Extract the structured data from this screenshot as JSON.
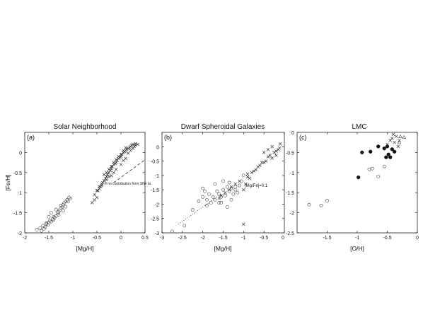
{
  "chart_data": [
    {
      "type": "scatter",
      "panel_label": "(a)",
      "title": "Solar Neighborhood",
      "xlabel": "[Mg/H]",
      "ylabel": "[Fe/H]",
      "xlim": [
        -2,
        0.5
      ],
      "ylim": [
        -2,
        0.5
      ],
      "xticks": [
        -2,
        -1.5,
        -1,
        -0.5,
        0,
        0.5
      ],
      "xticklabels": [
        "-2",
        "-1.5",
        "-1",
        "-0.5",
        "0",
        "0.5"
      ],
      "yticks": [
        -2,
        -1.5,
        -1,
        -0.5,
        0
      ],
      "yticklabels": [
        "-2",
        "-1.5",
        "-1",
        "-0.5",
        "0"
      ],
      "annotations": [
        {
          "text": "If no contribution from SNe Ia",
          "x": -0.42,
          "y": -1.0
        }
      ],
      "lines": [
        {
          "style": "dashed",
          "x": [
            -0.15,
            0.48
          ],
          "y": [
            -0.75,
            -0.2
          ]
        }
      ],
      "series": [
        {
          "marker": "open-circle",
          "x": [
            -1.75,
            -1.68,
            -1.62,
            -1.58,
            -1.55,
            -1.52,
            -1.5,
            -1.48,
            -1.45,
            -1.42,
            -1.4,
            -1.38,
            -1.35,
            -1.32,
            -1.3,
            -1.28,
            -1.25,
            -1.22,
            -1.2,
            -1.18,
            -1.15,
            -1.12,
            -1.1,
            -1.05,
            -1.3,
            -1.4,
            -1.55,
            -1.6,
            -1.65,
            -1.5,
            -1.45,
            -1.35,
            -1.25,
            -1.2,
            -1.15,
            -1.08
          ],
          "y": [
            -1.92,
            -1.88,
            -1.82,
            -1.86,
            -1.78,
            -1.8,
            -1.74,
            -1.7,
            -1.72,
            -1.66,
            -1.6,
            -1.62,
            -1.58,
            -1.52,
            -1.48,
            -1.44,
            -1.38,
            -1.36,
            -1.3,
            -1.26,
            -1.22,
            -1.18,
            -1.22,
            -1.15,
            -1.55,
            -1.68,
            -1.75,
            -1.9,
            -1.95,
            -1.6,
            -1.5,
            -1.42,
            -1.32,
            -1.45,
            -1.35,
            -1.12
          ]
        },
        {
          "marker": "x",
          "x": [
            -0.6,
            -0.55,
            -0.5,
            -0.48,
            -0.45,
            -0.42,
            -0.4,
            -0.38,
            -0.35,
            -0.32,
            -0.3,
            -0.28,
            -0.25,
            -0.22,
            -0.2,
            -0.18,
            -0.15,
            -0.12,
            -0.1,
            -0.08,
            -0.05,
            -0.02,
            0.0,
            0.02,
            0.05,
            0.08,
            0.1,
            0.12,
            0.15,
            0.18,
            0.2,
            0.22,
            0.25,
            0.28,
            0.3,
            0.35,
            -0.35,
            -0.3,
            -0.25,
            -0.2,
            -0.15,
            -0.1,
            -0.05,
            0.0,
            0.05,
            0.1,
            -0.45,
            -0.4,
            -0.3,
            -0.2,
            -0.1,
            0.0,
            0.1,
            0.15,
            -0.55,
            -0.5,
            -0.25,
            -0.15,
            0.05,
            0.2,
            0.25,
            0.3
          ],
          "y": [
            -1.25,
            -1.18,
            -1.12,
            -0.95,
            -0.9,
            -0.85,
            -0.82,
            -0.75,
            -0.7,
            -0.65,
            -0.6,
            -0.55,
            -0.5,
            -0.45,
            -0.4,
            -0.35,
            -0.3,
            -0.28,
            -0.25,
            -0.2,
            -0.15,
            -0.12,
            -0.1,
            -0.05,
            0.0,
            0.02,
            0.05,
            0.08,
            0.1,
            0.12,
            0.15,
            0.18,
            0.2,
            0.15,
            0.22,
            0.2,
            -0.55,
            -0.5,
            -0.42,
            -0.35,
            -0.25,
            -0.18,
            -0.1,
            -0.05,
            0.05,
            0.12,
            -0.85,
            -0.78,
            -0.68,
            -0.58,
            -0.42,
            -0.3,
            -0.15,
            -0.02,
            -1.05,
            -0.95,
            -0.6,
            -0.5,
            -0.2,
            0.05,
            0.1,
            0.18
          ]
        }
      ]
    },
    {
      "type": "scatter",
      "panel_label": "(b)",
      "title": "Dwarf Spheroidal Galaxies",
      "xlabel": "[Mg/H]",
      "ylabel": "",
      "xlim": [
        -3,
        0
      ],
      "ylim": [
        -3,
        0.5
      ],
      "xticks": [
        -3,
        -2.5,
        -2,
        -1.5,
        -1,
        -0.5,
        0
      ],
      "xticklabels": [
        "-3",
        "-2.5",
        "-2",
        "-1.5",
        "-1",
        "-0.5",
        "0"
      ],
      "yticks": [
        -3,
        -2.5,
        -2,
        -1.5,
        -1,
        -0.5,
        0
      ],
      "yticklabels": [
        "-3",
        "-2.5",
        "-2",
        "-1.5",
        "-1",
        "-0.5",
        "0"
      ],
      "annotations": [
        {
          "text": "[Mg/Fe]=0.1",
          "x": -0.92,
          "y": -1.08
        }
      ],
      "lines": [
        {
          "style": "dotted",
          "x": [
            -2.6,
            -1.55
          ],
          "y": [
            -2.7,
            -1.65
          ]
        }
      ],
      "series": [
        {
          "marker": "open-circle",
          "x": [
            -2.75,
            -2.45,
            -2.25,
            -2.1,
            -2.0,
            -1.95,
            -1.9,
            -1.85,
            -1.8,
            -1.75,
            -1.7,
            -1.65,
            -1.6,
            -1.55,
            -1.5,
            -1.45,
            -1.4,
            -1.35,
            -1.3,
            -1.25,
            -1.2,
            -1.15,
            -1.1,
            -1.05,
            -1.0,
            -2.0,
            -1.9,
            -1.6,
            -1.5,
            -1.4,
            -1.3,
            -1.2,
            -1.7,
            -1.55,
            -1.35
          ],
          "y": [
            -2.95,
            -2.75,
            -2.2,
            -1.9,
            -1.75,
            -1.55,
            -1.85,
            -1.65,
            -1.95,
            -1.75,
            -1.85,
            -1.55,
            -1.65,
            -1.75,
            -1.5,
            -1.7,
            -1.4,
            -1.55,
            -1.45,
            -1.65,
            -1.4,
            -1.6,
            -1.35,
            -1.2,
            -1.0,
            -1.45,
            -2.05,
            -1.95,
            -1.2,
            -2.1,
            -1.85,
            -1.5,
            -1.3,
            -1.95,
            -1.25
          ]
        },
        {
          "marker": "x",
          "x": [
            -1.6,
            -1.55,
            -1.45,
            -1.35,
            -1.3,
            -1.2,
            -1.1,
            -1.0,
            -0.95,
            -0.9,
            -0.85,
            -0.8,
            -0.75,
            -0.7,
            -0.65,
            -0.6,
            -0.55,
            -0.5,
            -0.45,
            -0.4,
            -0.35,
            -0.3,
            -0.25,
            -0.2,
            -0.15,
            -0.1,
            -1.0,
            -0.9,
            -0.5,
            -0.4,
            -0.3,
            -0.2,
            -0.12
          ],
          "y": [
            -1.8,
            -1.7,
            -1.6,
            -1.5,
            -1.4,
            -1.3,
            -1.2,
            -1.5,
            -1.3,
            -1.05,
            -1.1,
            -0.9,
            -0.85,
            -0.8,
            -0.7,
            -0.65,
            -0.55,
            -0.55,
            -0.5,
            -0.35,
            -0.3,
            -0.4,
            -0.2,
            -0.15,
            -0.1,
            0.1,
            -2.7,
            -0.95,
            -0.2,
            -0.1,
            0.0,
            -0.3,
            -0.05
          ]
        }
      ]
    },
    {
      "type": "scatter",
      "panel_label": "(c)",
      "title": "LMC",
      "xlabel": "[O/H]",
      "ylabel": "",
      "xlim": [
        -2,
        0
      ],
      "ylim": [
        -2.5,
        0
      ],
      "xticks": [
        -1.5,
        -1,
        -0.5,
        0
      ],
      "xticklabels": [
        "-1.5",
        "-1",
        "-0.5",
        "0"
      ],
      "yticks": [
        -2.5,
        -2,
        -1.5,
        -1,
        -0.5,
        0
      ],
      "yticklabels": [
        "-2.5",
        "-2",
        "-1.5",
        "-1",
        "-0.5",
        "0"
      ],
      "annotations": [],
      "lines": [],
      "series": [
        {
          "marker": "open-circle",
          "x": [
            -1.8,
            -1.6,
            -1.5,
            -0.8,
            -0.75,
            -0.65,
            -0.55
          ],
          "y": [
            -1.8,
            -1.82,
            -1.7,
            -0.92,
            -0.9,
            -1.1,
            -0.85
          ]
        },
        {
          "marker": "filled-circle",
          "x": [
            -0.98,
            -0.92,
            -0.78,
            -0.65,
            -0.55,
            -0.5,
            -0.48,
            -0.45,
            -0.42,
            -0.38,
            -0.52
          ],
          "y": [
            -1.12,
            -0.5,
            -0.48,
            -0.35,
            -0.4,
            -0.35,
            -0.55,
            -0.62,
            -0.42,
            -0.48,
            -0.62
          ]
        },
        {
          "marker": "x",
          "x": [
            -0.5,
            -0.45,
            -0.42,
            -0.38,
            -0.35,
            -0.3,
            -0.32,
            -0.4
          ],
          "y": [
            -0.3,
            -0.2,
            -0.15,
            -0.25,
            -0.1,
            -0.2,
            -0.35,
            -0.05
          ]
        },
        {
          "marker": "open-triangle",
          "x": [
            -0.28,
            -0.22,
            -0.3
          ],
          "y": [
            -0.1,
            -0.12,
            -0.25
          ]
        }
      ]
    }
  ]
}
